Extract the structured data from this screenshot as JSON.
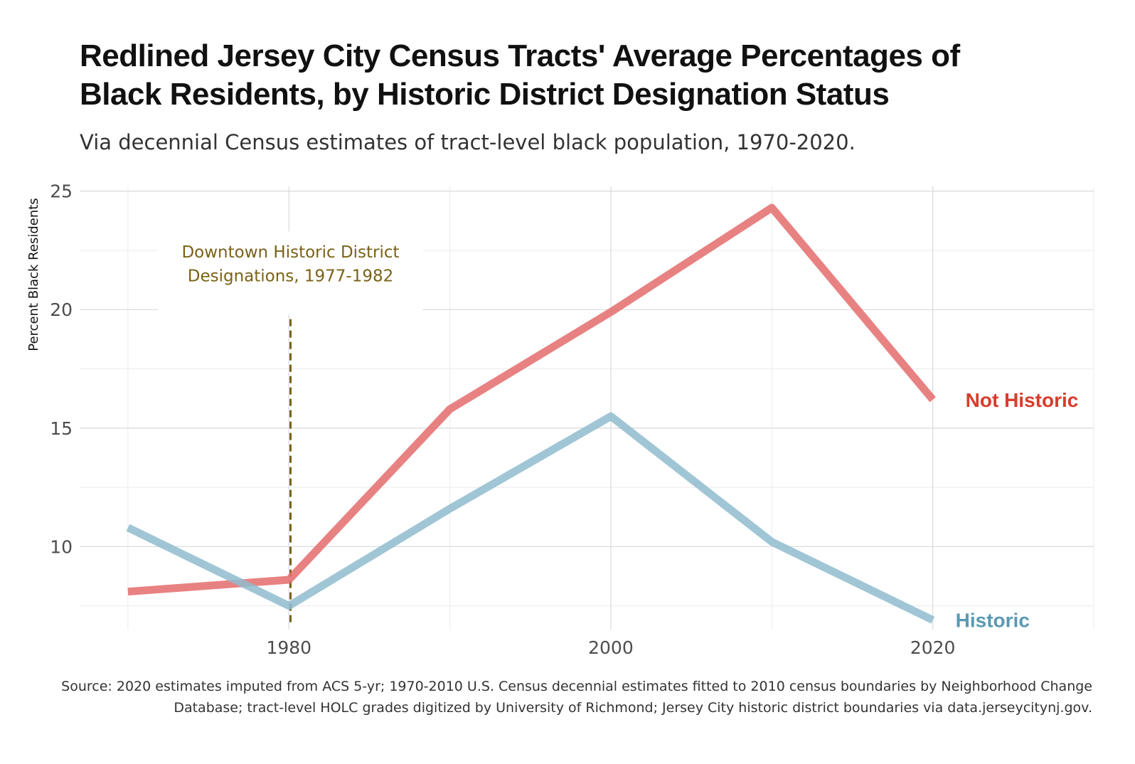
{
  "title_line1": "Redlined Jersey City Census Tracts' Average Percentages of",
  "title_line2": "Black Residents, by Historic District Designation Status",
  "subtitle": "Via decennial Census estimates of tract-level black population, 1970-2020.",
  "caption_line1": "Source: 2020 estimates imputed from ACS 5-yr; 1970-2010 U.S. Census decennial estimates fitted to 2010 census boundaries by Neighborhood Change",
  "caption_line2": "Database; tract-level HOLC grades digitized by University of Richmond; Jersey City historic district boundaries via data.jerseycitynj.gov.",
  "chart_data": {
    "type": "line",
    "ylabel": "Percent Black Residents",
    "xlabel": "",
    "xlim": [
      1967,
      2030
    ],
    "ylim": [
      6.5,
      25.2
    ],
    "x_ticks": [
      1980,
      2000,
      2020
    ],
    "x_minor_grid": [
      1970,
      1990,
      2010,
      2030
    ],
    "y_ticks": [
      10,
      15,
      20,
      25
    ],
    "y_minor_grid": [
      7.5,
      12.5,
      17.5,
      22.5
    ],
    "grid": true,
    "series": [
      {
        "name": "Not Historic",
        "color": "#e46c6c",
        "label_color": "#d73c2c",
        "x": [
          1970,
          1980,
          1990,
          2000,
          2010,
          2020
        ],
        "y": [
          8.1,
          8.6,
          15.8,
          19.9,
          24.3,
          16.2
        ]
      },
      {
        "name": "Historic",
        "color": "#8fbccf",
        "label_color": "#5a99b3",
        "x": [
          1970,
          1980,
          1990,
          2000,
          2010,
          2020
        ],
        "y": [
          10.8,
          7.5,
          11.6,
          15.5,
          10.2,
          6.9
        ]
      }
    ],
    "annotation": {
      "x": 1980.1,
      "line_top_y": 19.6,
      "line1": "Downtown Historic District",
      "line2": "Designations, 1977-1982",
      "color": "#7a6216"
    }
  }
}
